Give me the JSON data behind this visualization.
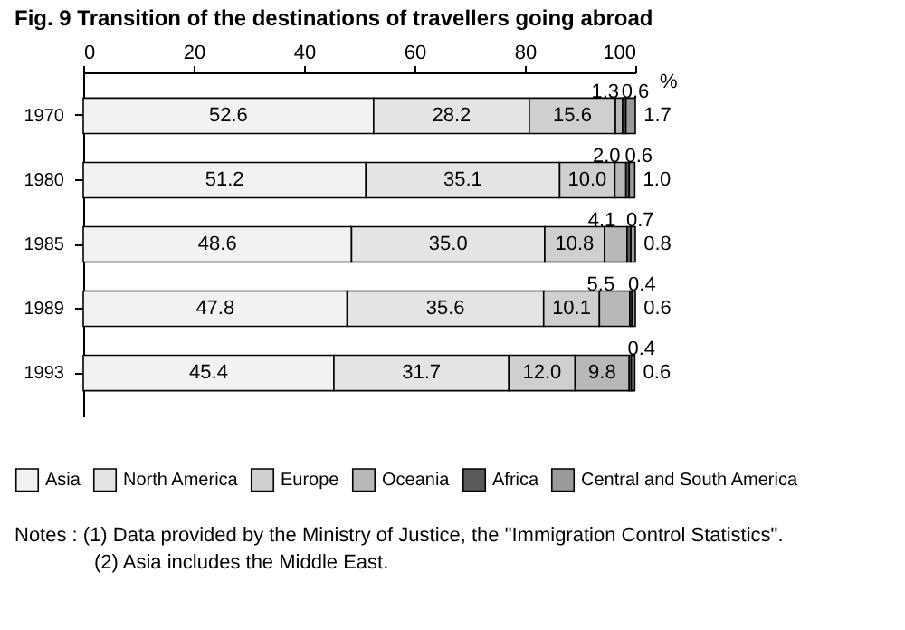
{
  "chart_data": {
    "type": "bar",
    "orientation": "horizontal",
    "stacked": true,
    "title": "Fig. 9 Transition of the destinations of travellers going abroad",
    "xlabel": "%",
    "categories": [
      "1970",
      "1980",
      "1985",
      "1989",
      "1993"
    ],
    "series": [
      {
        "name": "Asia",
        "color": "#f2f2f2",
        "values": [
          52.6,
          51.2,
          48.6,
          47.8,
          45.4
        ],
        "value_labels": [
          "52.6",
          "51.2",
          "48.6",
          "47.8",
          "45.4"
        ]
      },
      {
        "name": "North America",
        "color": "#e4e4e4",
        "values": [
          28.2,
          35.1,
          35.0,
          35.6,
          31.7
        ],
        "value_labels": [
          "28.2",
          "35.1",
          "35.0",
          "35.6",
          "31.7"
        ]
      },
      {
        "name": "Europe",
        "color": "#cfcfcf",
        "values": [
          15.6,
          10.0,
          10.8,
          10.1,
          12.0
        ],
        "value_labels": [
          "15.6",
          "10.0",
          "10.8",
          "10.1",
          "12.0"
        ]
      },
      {
        "name": "Oceania",
        "color": "#b8b8b8",
        "values": [
          1.3,
          2.0,
          4.1,
          5.5,
          9.8
        ],
        "value_labels": [
          "1.3",
          "2.0",
          "4.1",
          "5.5",
          "9.8"
        ]
      },
      {
        "name": "Africa",
        "color": "#5a5a5a",
        "values": [
          0.6,
          0.6,
          0.7,
          0.4,
          0.4
        ],
        "value_labels": [
          "0.6",
          "0.6",
          "0.7",
          "0.4",
          "0.4"
        ]
      },
      {
        "name": "Central and South America",
        "color": "#9a9a9a",
        "values": [
          1.7,
          1.0,
          0.8,
          0.6,
          0.6
        ],
        "value_labels": [
          "1.7",
          "1.0",
          "0.8",
          "0.6",
          "0.6"
        ]
      }
    ],
    "xlim": [
      0,
      100
    ],
    "xticks": [
      0,
      20,
      40,
      60,
      80,
      100
    ],
    "legend": "bottom",
    "grid": false,
    "annotations": [
      "Notes : (1) Data provided by the Ministry of Justice, the \"Immigration Control Statistics\".",
      "(2) Asia includes the Middle East."
    ]
  }
}
